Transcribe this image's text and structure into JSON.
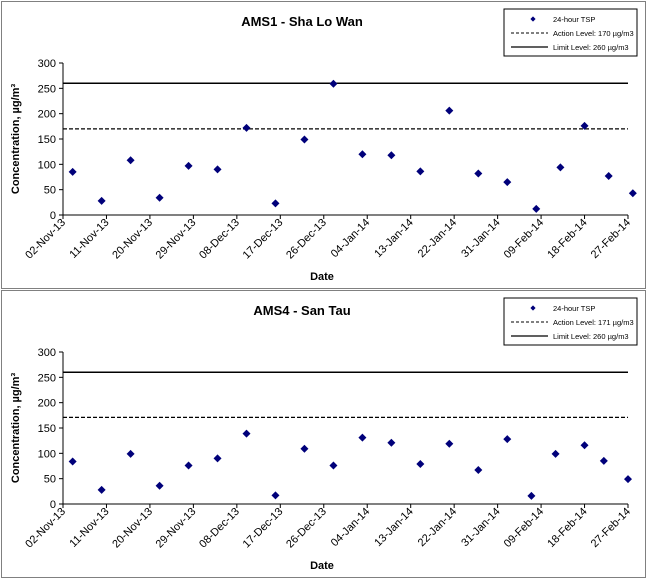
{
  "colors": {
    "marker": "#00007a",
    "line": "#000000"
  },
  "chart_data": [
    {
      "type": "scatter",
      "title": "AMS1 - Sha Lo Wan",
      "xlabel": "Date",
      "ylabel": "Concentration, µg/m³",
      "ylim": [
        0,
        300
      ],
      "yticks": [
        0,
        50,
        100,
        150,
        200,
        250,
        300
      ],
      "xticks": [
        "02-Nov-13",
        "11-Nov-13",
        "20-Nov-13",
        "29-Nov-13",
        "08-Dec-13",
        "17-Dec-13",
        "26-Dec-13",
        "04-Jan-14",
        "13-Jan-14",
        "22-Jan-14",
        "31-Jan-14",
        "09-Feb-14",
        "18-Feb-14",
        "27-Feb-14"
      ],
      "xlim": [
        "2013-11-02",
        "2014-02-27"
      ],
      "grid": false,
      "legend_position": "top-right",
      "series": [
        {
          "name": "24-hour TSP",
          "kind": "marker",
          "points": [
            {
              "x": "2013-11-04",
              "y": 85
            },
            {
              "x": "2013-11-10",
              "y": 28
            },
            {
              "x": "2013-11-16",
              "y": 108
            },
            {
              "x": "2013-11-22",
              "y": 34
            },
            {
              "x": "2013-11-28",
              "y": 97
            },
            {
              "x": "2013-12-04",
              "y": 90
            },
            {
              "x": "2013-12-10",
              "y": 172
            },
            {
              "x": "2013-12-16",
              "y": 23
            },
            {
              "x": "2013-12-22",
              "y": 149
            },
            {
              "x": "2013-12-28",
              "y": 259
            },
            {
              "x": "2014-01-03",
              "y": 120
            },
            {
              "x": "2014-01-09",
              "y": 118
            },
            {
              "x": "2014-01-15",
              "y": 86
            },
            {
              "x": "2014-01-21",
              "y": 206
            },
            {
              "x": "2014-01-27",
              "y": 82
            },
            {
              "x": "2014-02-02",
              "y": 65
            },
            {
              "x": "2014-02-08",
              "y": 12
            },
            {
              "x": "2014-02-13",
              "y": 94
            },
            {
              "x": "2014-02-18",
              "y": 176
            },
            {
              "x": "2014-02-23",
              "y": 77
            },
            {
              "x": "2014-02-28",
              "y": 43
            }
          ]
        },
        {
          "name": "Action Level: 170 µg/m3",
          "kind": "dashed",
          "value": 170
        },
        {
          "name": "Limit Level: 260 µg/m3",
          "kind": "solid",
          "value": 260
        }
      ]
    },
    {
      "type": "scatter",
      "title": "AMS4 - San Tau",
      "xlabel": "Date",
      "ylabel": "Concentration, µg/m³",
      "ylim": [
        0,
        300
      ],
      "yticks": [
        0,
        50,
        100,
        150,
        200,
        250,
        300
      ],
      "xticks": [
        "02-Nov-13",
        "11-Nov-13",
        "20-Nov-13",
        "29-Nov-13",
        "08-Dec-13",
        "17-Dec-13",
        "26-Dec-13",
        "04-Jan-14",
        "13-Jan-14",
        "22-Jan-14",
        "31-Jan-14",
        "09-Feb-14",
        "18-Feb-14",
        "27-Feb-14"
      ],
      "xlim": [
        "2013-11-02",
        "2014-02-27"
      ],
      "grid": false,
      "legend_position": "top-right",
      "series": [
        {
          "name": "24-hour TSP",
          "kind": "marker",
          "points": [
            {
              "x": "2013-11-04",
              "y": 84
            },
            {
              "x": "2013-11-10",
              "y": 28
            },
            {
              "x": "2013-11-16",
              "y": 99
            },
            {
              "x": "2013-11-22",
              "y": 36
            },
            {
              "x": "2013-11-28",
              "y": 76
            },
            {
              "x": "2013-12-04",
              "y": 90
            },
            {
              "x": "2013-12-10",
              "y": 139
            },
            {
              "x": "2013-12-16",
              "y": 17
            },
            {
              "x": "2013-12-22",
              "y": 109
            },
            {
              "x": "2013-12-28",
              "y": 76
            },
            {
              "x": "2014-01-03",
              "y": 131
            },
            {
              "x": "2014-01-09",
              "y": 121
            },
            {
              "x": "2014-01-15",
              "y": 79
            },
            {
              "x": "2014-01-21",
              "y": 119
            },
            {
              "x": "2014-01-27",
              "y": 67
            },
            {
              "x": "2014-02-02",
              "y": 128
            },
            {
              "x": "2014-02-07",
              "y": 16
            },
            {
              "x": "2014-02-12",
              "y": 99
            },
            {
              "x": "2014-02-18",
              "y": 116
            },
            {
              "x": "2014-02-22",
              "y": 85
            },
            {
              "x": "2014-02-27",
              "y": 49
            }
          ]
        },
        {
          "name": "Action Level: 171 µg/m3",
          "kind": "dashed",
          "value": 171
        },
        {
          "name": "Limit Level: 260 µg/m3",
          "kind": "solid",
          "value": 260
        }
      ]
    }
  ]
}
